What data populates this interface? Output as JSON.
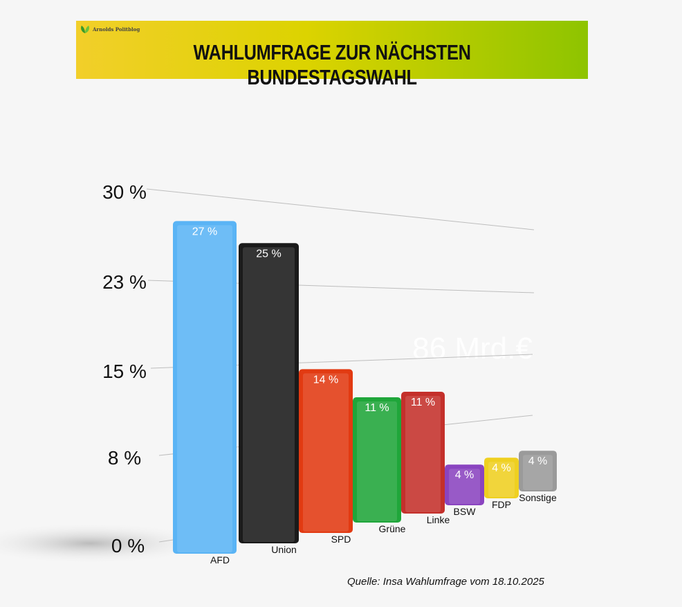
{
  "header": {
    "logo_text": "Arnolds Politblog",
    "title": "WAHLUMFRAGE ZUR NÄCHSTEN BUNDESTAGSWAHL"
  },
  "chart_data": {
    "type": "bar",
    "categories": [
      "AFD",
      "Union",
      "SPD",
      "Grüne",
      "Linke",
      "BSW",
      "FDP",
      "Sonstige"
    ],
    "values": [
      27,
      25,
      14,
      11,
      11,
      4,
      4,
      4
    ],
    "data_labels": [
      "27 %",
      "25 %",
      "14 %",
      "11 %",
      "11 %",
      "4 %",
      "4 %",
      "4 %"
    ],
    "colors": [
      "#5ab4f5",
      "#1a1a1a",
      "#e23a12",
      "#1fa63a",
      "#c4302b",
      "#8a44c0",
      "#efd020",
      "#9a9a9a"
    ],
    "y_ticks": [
      "30 %",
      "23 %",
      "15 %",
      "8 %",
      "0 %"
    ],
    "ylim": [
      0,
      30
    ],
    "watermark": "86 Mrd.€",
    "grid": true
  },
  "source": "Quelle: Insa Wahlumfrage vom 18.10.2025"
}
